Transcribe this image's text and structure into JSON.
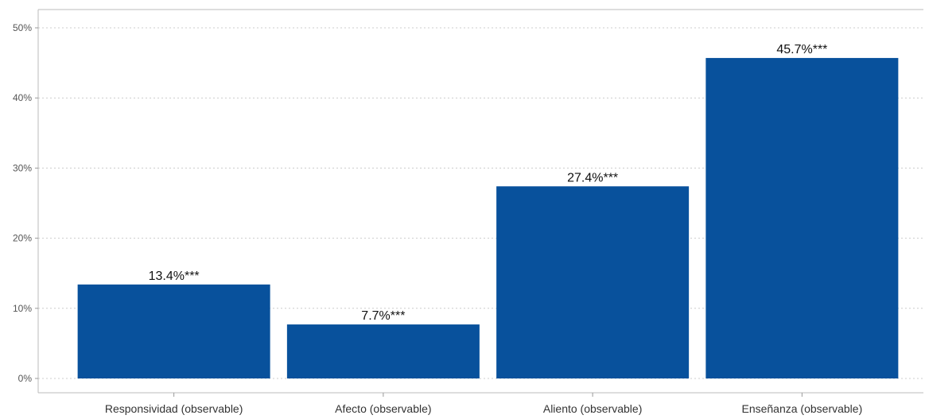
{
  "chart_data": {
    "type": "bar",
    "categories": [
      "Responsividad (observable)",
      "Afecto (observable)",
      "Aliento (observable)",
      "Enseñanza (observable)"
    ],
    "values": [
      13.4,
      7.7,
      27.4,
      45.7
    ],
    "data_labels": [
      "13.4%***",
      "7.7%***",
      "27.4%***",
      "45.7%***"
    ],
    "y_ticks": [
      0,
      10,
      20,
      30,
      40,
      50
    ],
    "y_tick_labels": [
      "0%",
      "10%",
      "20%",
      "30%",
      "40%",
      "50%"
    ],
    "ylim": [
      0,
      50
    ],
    "grid": true,
    "bar_color": "#08519c",
    "title": "",
    "xlabel": "",
    "ylabel": ""
  }
}
